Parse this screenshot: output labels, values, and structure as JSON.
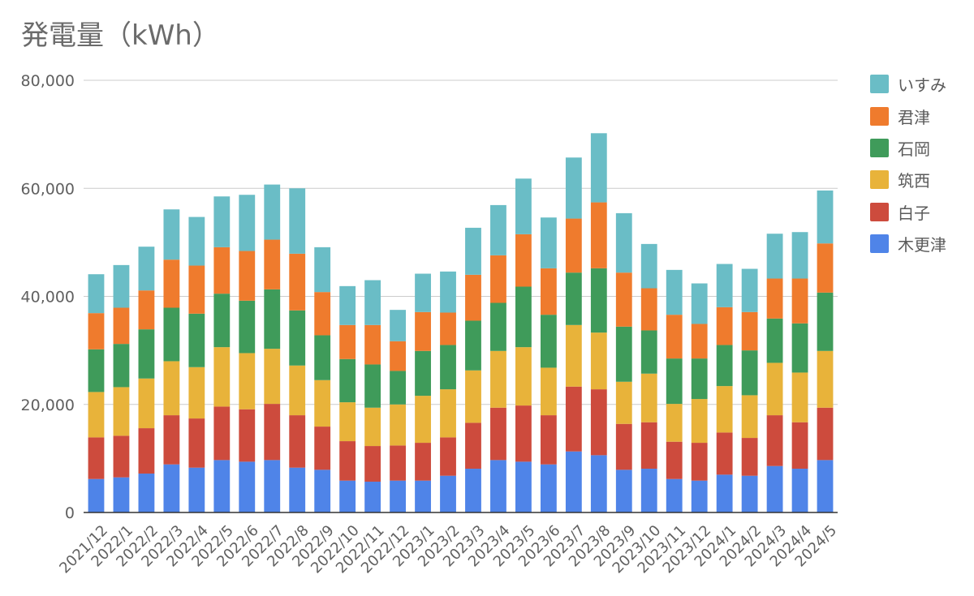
{
  "chart_data": {
    "type": "bar",
    "stacked": true,
    "title": "発電量（kWh）",
    "xlabel": "",
    "ylabel": "",
    "ylim": [
      0,
      80000
    ],
    "yticks": [
      0,
      20000,
      40000,
      60000,
      80000
    ],
    "ytick_labels": [
      "0",
      "20,000",
      "40,000",
      "60,000",
      "80,000"
    ],
    "grid": true,
    "legend_position": "right",
    "categories": [
      "2021/12",
      "2022/1",
      "2022/2",
      "2022/3",
      "2022/4",
      "2022/5",
      "2022/6",
      "2022/7",
      "2022/8",
      "2022/9",
      "2022/10",
      "2022/11",
      "2022/12",
      "2023/1",
      "2023/2",
      "2023/3",
      "2023/4",
      "2023/5",
      "2023/6",
      "2023/7",
      "2023/8",
      "2023/9",
      "2023/10",
      "2023/11",
      "2023/12",
      "2024/1",
      "2024/2",
      "2024/3",
      "2024/4",
      "2024/5"
    ],
    "series": [
      {
        "name": "木更津",
        "color": "#4f84e8",
        "values": [
          6200,
          6500,
          7200,
          8900,
          8300,
          9700,
          9400,
          9700,
          8300,
          7900,
          5900,
          5700,
          5900,
          5900,
          6800,
          8100,
          9700,
          9400,
          8900,
          11300,
          10600,
          7900,
          8100,
          6200,
          5900,
          7000,
          6800,
          8600,
          8100,
          9700
        ]
      },
      {
        "name": "白子",
        "color": "#cd4b3d",
        "values": [
          7700,
          7700,
          8400,
          9100,
          9100,
          9900,
          9700,
          10400,
          9700,
          8000,
          7300,
          6600,
          6500,
          7000,
          7100,
          8500,
          9700,
          10400,
          9100,
          12000,
          12200,
          8500,
          8600,
          6900,
          7000,
          7800,
          7000,
          9400,
          8600,
          9700
        ]
      },
      {
        "name": "筑西",
        "color": "#e8b33a",
        "values": [
          8400,
          9000,
          9200,
          10000,
          9500,
          11000,
          10400,
          10200,
          9200,
          8600,
          7200,
          7100,
          7600,
          8700,
          8900,
          9700,
          10500,
          10800,
          8800,
          11400,
          10500,
          7800,
          9000,
          7000,
          8100,
          8600,
          7900,
          9700,
          9200,
          10500
        ]
      },
      {
        "name": "石岡",
        "color": "#3f9b5a",
        "values": [
          7900,
          8000,
          9100,
          9900,
          9900,
          9900,
          9700,
          11000,
          10200,
          8300,
          8000,
          8000,
          6200,
          8300,
          8200,
          9200,
          8900,
          11200,
          9800,
          9700,
          11900,
          10200,
          8000,
          8400,
          7500,
          7600,
          8300,
          8200,
          9100,
          10800
        ]
      },
      {
        "name": "君津",
        "color": "#ef7b2d",
        "values": [
          6700,
          6700,
          7200,
          8900,
          8900,
          8600,
          9200,
          9200,
          10500,
          8000,
          6300,
          7300,
          5500,
          7200,
          6000,
          8500,
          8800,
          9700,
          8600,
          10000,
          12200,
          10000,
          7800,
          8100,
          6400,
          7000,
          7100,
          7400,
          8300,
          9100
        ]
      },
      {
        "name": "いすみ",
        "color": "#6abdc6",
        "values": [
          7200,
          7900,
          8100,
          9300,
          9000,
          9400,
          10400,
          10200,
          12100,
          8300,
          7200,
          8300,
          5800,
          7100,
          7600,
          8700,
          9300,
          10300,
          9400,
          11300,
          12800,
          11000,
          8200,
          8300,
          7500,
          8000,
          8000,
          8300,
          8600,
          9800
        ]
      }
    ]
  }
}
